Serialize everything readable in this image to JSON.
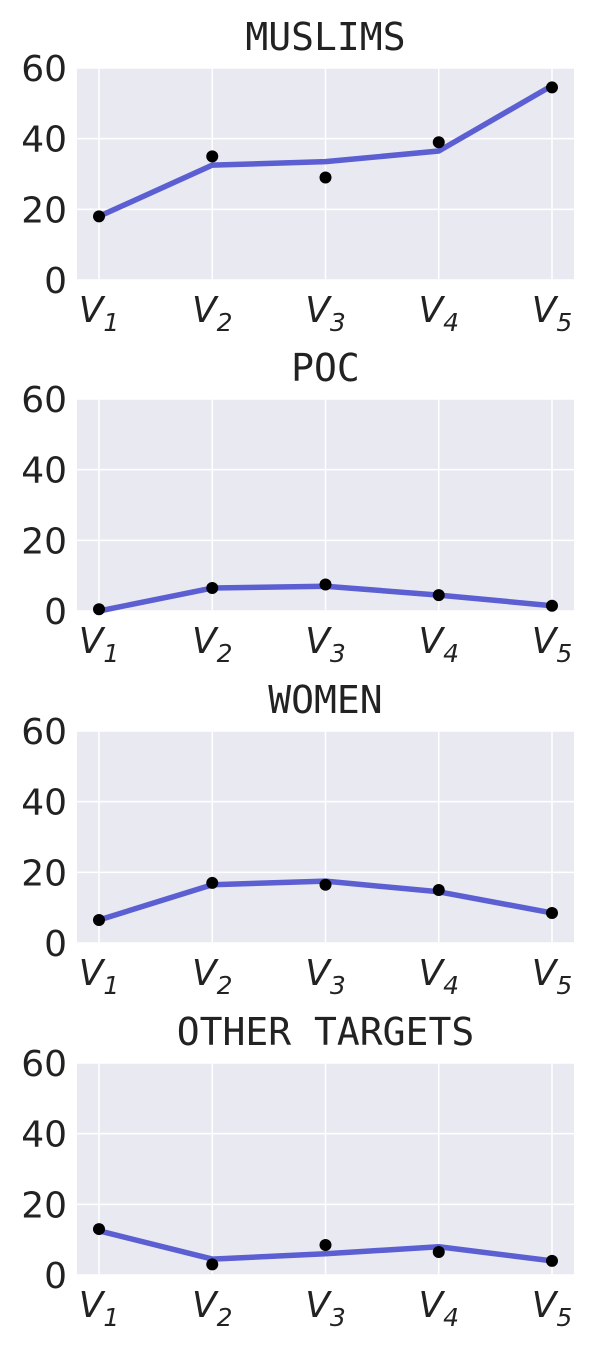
{
  "chart_data": [
    {
      "type": "line",
      "title": "MUSLIMS",
      "categories": [
        "V1",
        "V2",
        "V3",
        "V4",
        "V5"
      ],
      "ylim": [
        0,
        60
      ],
      "yticks": [
        0,
        20,
        40,
        60
      ],
      "grid": true,
      "series": [
        {
          "kind": "fitted-line",
          "values": [
            18,
            32.5,
            33.5,
            36.5,
            55
          ]
        },
        {
          "kind": "points",
          "values": [
            18,
            35,
            29,
            39,
            54.5
          ]
        }
      ]
    },
    {
      "type": "line",
      "title": "POC",
      "categories": [
        "V1",
        "V2",
        "V3",
        "V4",
        "V5"
      ],
      "ylim": [
        0,
        60
      ],
      "yticks": [
        0,
        20,
        40,
        60
      ],
      "grid": true,
      "series": [
        {
          "kind": "fitted-line",
          "values": [
            0,
            6.5,
            7,
            4.5,
            1.5
          ]
        },
        {
          "kind": "points",
          "values": [
            0.5,
            6.5,
            7.5,
            4.5,
            1.5
          ]
        }
      ]
    },
    {
      "type": "line",
      "title": "WOMEN",
      "categories": [
        "V1",
        "V2",
        "V3",
        "V4",
        "V5"
      ],
      "ylim": [
        0,
        60
      ],
      "yticks": [
        0,
        20,
        40,
        60
      ],
      "grid": true,
      "series": [
        {
          "kind": "fitted-line",
          "values": [
            6.5,
            16.5,
            17.5,
            14.5,
            8.5
          ]
        },
        {
          "kind": "points",
          "values": [
            6.5,
            17,
            16.5,
            15,
            8.5
          ]
        }
      ]
    },
    {
      "type": "line",
      "title": "OTHER TARGETS",
      "categories": [
        "V1",
        "V2",
        "V3",
        "V4",
        "V5"
      ],
      "ylim": [
        0,
        60
      ],
      "yticks": [
        0,
        20,
        40,
        60
      ],
      "grid": true,
      "series": [
        {
          "kind": "fitted-line",
          "values": [
            12.5,
            4.5,
            6,
            8,
            4
          ]
        },
        {
          "kind": "points",
          "values": [
            13,
            3,
            8.5,
            6.5,
            4
          ]
        }
      ]
    }
  ],
  "colors": {
    "line": "#5b5fd1",
    "points": "#000000",
    "plot_background": "#e9e9f2",
    "gridline": "#ffffff",
    "text": "#222222"
  }
}
